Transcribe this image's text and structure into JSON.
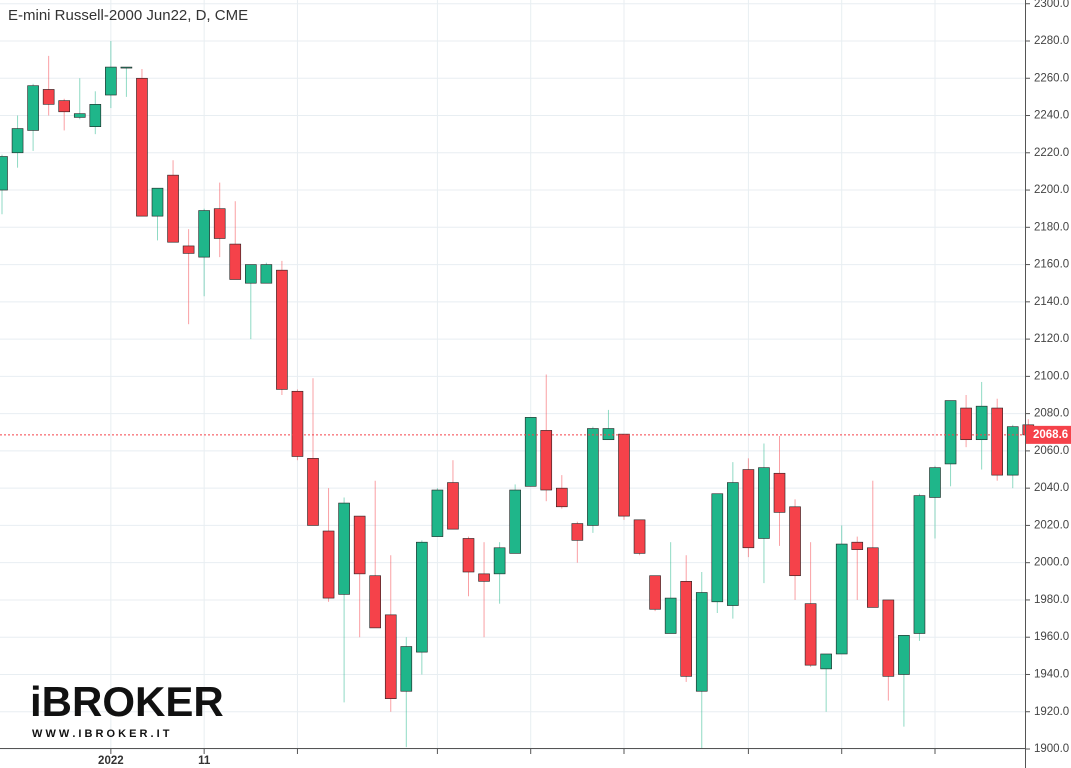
{
  "chart_data": {
    "type": "candlestick",
    "title": "E-mini Russell-2000 Jun22, D, CME",
    "categories": [
      null,
      null,
      null,
      null,
      null,
      null,
      null,
      "2022",
      null,
      null,
      null,
      null,
      null,
      "11",
      null,
      null,
      null,
      null,
      null,
      null,
      null,
      null,
      null,
      null,
      null,
      null,
      null,
      null,
      null,
      null,
      null,
      null,
      null,
      null,
      null,
      null,
      null,
      null,
      null,
      null,
      null,
      null,
      null,
      null,
      null,
      null,
      null,
      null,
      null,
      null,
      null,
      null,
      null,
      null,
      null,
      null,
      null,
      null,
      null,
      null,
      null,
      null,
      null,
      null,
      null,
      null,
      null
    ],
    "open": [
      2200,
      2220,
      2232,
      2254,
      2248,
      2239,
      2234,
      2251,
      2265.5,
      2260,
      2186,
      2208,
      2170,
      2164,
      2190,
      2171,
      2150,
      2150,
      2157,
      2092,
      2056,
      2017,
      1983,
      2025,
      1993,
      1972,
      1931,
      1952,
      2014,
      2043,
      2013,
      1994,
      1994,
      2005,
      2041,
      2071,
      2040,
      2021,
      2020,
      2066,
      2069,
      2023,
      1993,
      1962,
      1990,
      1931,
      1979,
      1977,
      2050,
      2013,
      2048,
      2030,
      1978,
      1943,
      1951,
      2011,
      2008,
      1980,
      1940,
      1962,
      2035,
      2053,
      2083,
      2066,
      2083,
      2047,
      2074
    ],
    "high": [
      2219,
      2240,
      2257,
      2272,
      2249,
      2260,
      2253,
      2280,
      2266,
      2265,
      2201,
      2216,
      2179,
      2190,
      2204,
      2194,
      2160,
      2161,
      2162,
      2093,
      2099,
      2040,
      2035,
      2025,
      2044,
      2004,
      1960,
      2012,
      2040,
      2055,
      2014,
      2011,
      2011,
      2042,
      2078,
      2101,
      2047,
      2022,
      2073,
      2082,
      2069,
      2023,
      1993,
      2011,
      2004,
      1995,
      2037,
      2054,
      2056,
      2064,
      2068,
      2034,
      2011,
      1951,
      2020,
      2014,
      2044,
      1980,
      1961,
      2037,
      2052,
      2087,
      2090,
      2097,
      2088,
      2074,
      2077
    ],
    "low": [
      2187,
      2212,
      2221,
      2240,
      2232,
      2238,
      2230,
      2244,
      2250,
      2186,
      2173,
      2172,
      2128,
      2143,
      2164,
      2152,
      2120,
      2150,
      2090,
      2055,
      2020,
      1979,
      1925,
      1960,
      1966,
      1920,
      1901,
      1940,
      2014,
      2018,
      1982,
      1960,
      1978,
      2005,
      2041,
      2033,
      2029,
      2000,
      2016,
      2066,
      2023,
      2004,
      1974,
      1962,
      1936,
      1900,
      1973,
      1970,
      2003,
      1989,
      2009,
      1980,
      1944,
      1920,
      1951,
      1980,
      1976,
      1926,
      1912,
      1958,
      2013,
      2041,
      2062,
      2050,
      2044,
      2040,
      2066
    ],
    "close": [
      2218,
      2233,
      2256,
      2246,
      2242,
      2241,
      2246,
      2266,
      2266,
      2186,
      2201,
      2172,
      2166,
      2189,
      2174,
      2152,
      2160,
      2160,
      2093,
      2057,
      2020,
      1981,
      2032,
      1994,
      1965,
      1927,
      1955,
      2011,
      2039,
      2018,
      1995,
      1990,
      2008,
      2039,
      2078,
      2039,
      2030,
      2012,
      2072,
      2072,
      2025,
      2005,
      1975,
      1981,
      1939,
      1984,
      2037,
      2043,
      2008,
      2051,
      2027,
      1993,
      1945,
      1951,
      2010,
      2007,
      1976,
      1939,
      1961,
      2036,
      2051,
      2087,
      2066,
      2084,
      2047,
      2073,
      2068.6
    ],
    "up_color": "#1fb68a",
    "down_color": "#f5424a",
    "ylim": [
      1900,
      2302
    ],
    "yticks": [
      {
        "value": 1900,
        "label": "1900.0"
      },
      {
        "value": 1920,
        "label": "1920.0"
      },
      {
        "value": 1940,
        "label": "1940.0"
      },
      {
        "value": 1960,
        "label": "1960.0"
      },
      {
        "value": 1980,
        "label": "1980.0"
      },
      {
        "value": 2000,
        "label": "2000.0"
      },
      {
        "value": 2020,
        "label": "2020.0"
      },
      {
        "value": 2040,
        "label": "2040.0"
      },
      {
        "value": 2060,
        "label": "2060.0"
      },
      {
        "value": 2080,
        "label": "2080.0"
      },
      {
        "value": 2100,
        "label": "2100.0"
      },
      {
        "value": 2120,
        "label": "2120.0"
      },
      {
        "value": 2140,
        "label": "2140.0"
      },
      {
        "value": 2160,
        "label": "2160.0"
      },
      {
        "value": 2180,
        "label": "2180.0"
      },
      {
        "value": 2200,
        "label": "2200.0"
      },
      {
        "value": 2220,
        "label": "2220.0"
      },
      {
        "value": 2240,
        "label": "2240.0"
      },
      {
        "value": 2260,
        "label": "2260.0"
      },
      {
        "value": 2280,
        "label": "2280.0"
      },
      {
        "value": 2300,
        "label": "2300.0"
      }
    ],
    "x_grid_at": [
      7,
      13,
      19,
      28,
      34,
      40,
      48,
      54,
      60
    ],
    "last_price": 2068.6,
    "grid": true
  },
  "logo": {
    "name": "iBROKER",
    "url": "W W W . I B R O K E R . I T"
  }
}
